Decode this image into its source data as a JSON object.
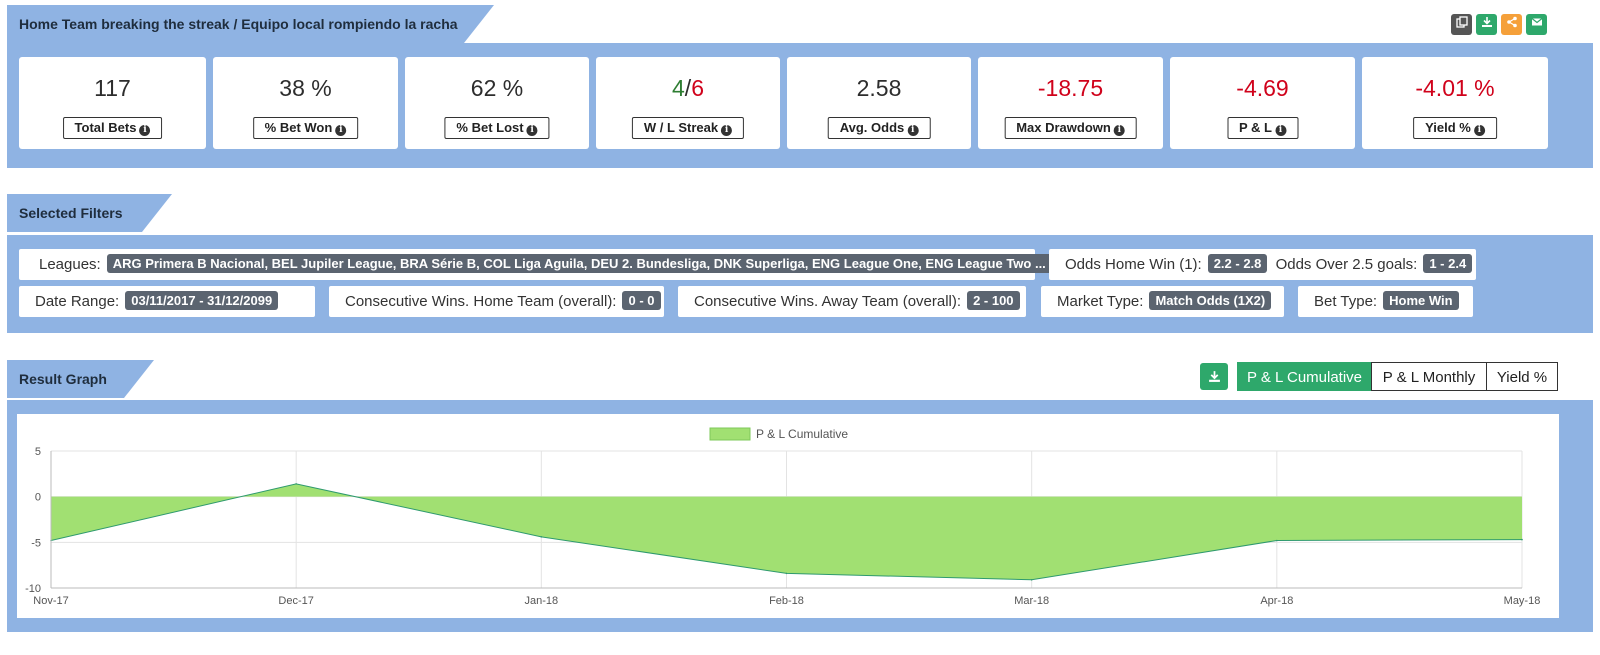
{
  "header": {
    "title": "Home Team breaking the streak / Equipo local rompiendo la racha",
    "icons": [
      "copy-icon",
      "download-icon",
      "share-icon",
      "email-icon"
    ],
    "icon_colors": [
      "#555555",
      "#2ea86b",
      "#f5a03a",
      "#2ea86b"
    ]
  },
  "stats": [
    {
      "value": "117",
      "label": "Total Bets"
    },
    {
      "value": "38 %",
      "label": "% Bet Won"
    },
    {
      "value": "62 %",
      "label": "% Bet Lost"
    },
    {
      "value_win": "4",
      "value_sep": "/",
      "value_loss": "6",
      "label": "W / L Streak"
    },
    {
      "value": "2.58",
      "label": "Avg. Odds"
    },
    {
      "value": "-18.75",
      "label": "Max Drawdown"
    },
    {
      "value": "-4.69",
      "label": "P & L"
    },
    {
      "value": "-4.01 %",
      "label": "Yield %"
    }
  ],
  "filters_section": {
    "title": "Selected Filters",
    "leagues": {
      "label": "Leagues:",
      "value": "ARG Primera B Nacional, BEL Jupiler League, BRA Série B, COL Liga Aguila, DEU 2. Bundesliga, DNK Superliga, ENG League One, ENG League Two ..."
    },
    "odds_home": {
      "label": "Odds Home Win (1):",
      "value": "2.2 - 2.8"
    },
    "odds_over": {
      "label": "Odds Over 2.5 goals:",
      "value": "1 - 2.4"
    },
    "date_range": {
      "label": "Date Range:",
      "value": "03/11/2017 - 31/12/2099"
    },
    "cons_home": {
      "label": "Consecutive Wins. Home Team (overall):",
      "value": "0 - 0"
    },
    "cons_away": {
      "label": "Consecutive Wins. Away Team (overall):",
      "value": "2 - 100"
    },
    "market": {
      "label": "Market Type:",
      "value": "Match Odds (1X2)"
    },
    "bet_type": {
      "label": "Bet Type:",
      "value": "Home Win"
    }
  },
  "graph_section": {
    "title": "Result Graph",
    "download_icon": "download-icon",
    "tabs": [
      "P & L Cumulative",
      "P & L Monthly",
      "Yield %"
    ],
    "active_tab": 0
  },
  "chart_data": {
    "type": "area",
    "legend": "P & L Cumulative",
    "legend_position": "top",
    "x": [
      "Nov-17",
      "Dec-17",
      "Jan-18",
      "Feb-18",
      "Mar-18",
      "Apr-18",
      "May-18"
    ],
    "series": [
      {
        "name": "P & L Cumulative",
        "values": [
          -4.8,
          1.4,
          -4.4,
          -8.4,
          -9.1,
          -4.8,
          -4.7
        ],
        "fill": "#a1e072",
        "stroke": "#2e9a6e"
      }
    ],
    "yticks": [
      5,
      0,
      -5,
      -10
    ],
    "ylim": [
      -10,
      5
    ],
    "grid": true
  },
  "colors": {
    "panel": "#8fb3e3",
    "accent_green": "#2ea86b",
    "negative": "#d0021b",
    "badge": "#5b6470"
  }
}
